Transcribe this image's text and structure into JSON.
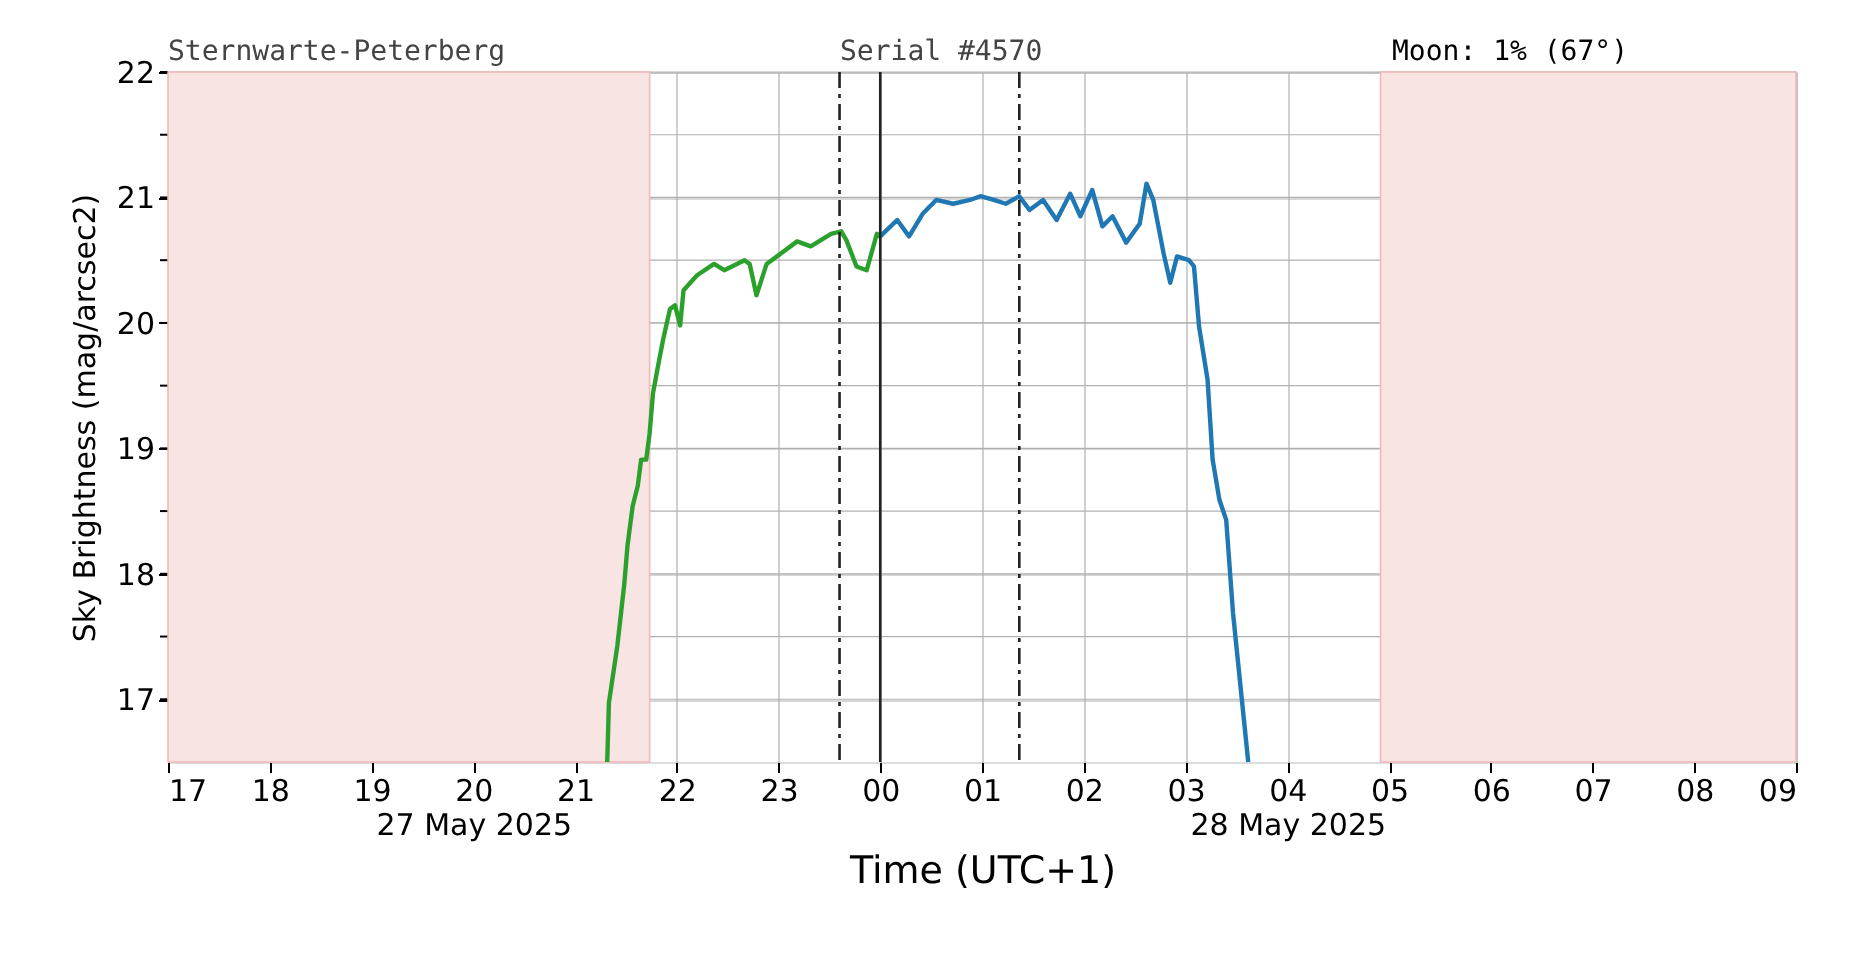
{
  "chart_data": {
    "type": "line",
    "xlabel": "Time (UTC+1)",
    "ylabel": "Sky Brightness (mag/arcsec2)",
    "annotations": [
      "Sternwarte-Peterberg",
      "Serial #4570",
      "Moon: 1% (67°)"
    ],
    "xlim": [
      "2025-05-27T17:00",
      "2025-05-28T09:00"
    ],
    "ylim": [
      16.5,
      22
    ],
    "xticks": [
      {
        "value": "2025-05-27T17:00",
        "label": "17"
      },
      {
        "value": "2025-05-27T18:00",
        "label": "18"
      },
      {
        "value": "2025-05-27T19:00",
        "label": "19"
      },
      {
        "value": "2025-05-27T20:00",
        "label": "20\n27 May 2025"
      },
      {
        "value": "2025-05-27T21:00",
        "label": "21"
      },
      {
        "value": "2025-05-27T22:00",
        "label": "22"
      },
      {
        "value": "2025-05-27T23:00",
        "label": "23"
      },
      {
        "value": "2025-05-28T00:00",
        "label": "00"
      },
      {
        "value": "2025-05-28T01:00",
        "label": "01"
      },
      {
        "value": "2025-05-28T02:00",
        "label": "02"
      },
      {
        "value": "2025-05-28T03:00",
        "label": "03"
      },
      {
        "value": "2025-05-28T04:00",
        "label": "04\n28 May 2025"
      },
      {
        "value": "2025-05-28T05:00",
        "label": "05"
      },
      {
        "value": "2025-05-28T06:00",
        "label": "06"
      },
      {
        "value": "2025-05-28T07:00",
        "label": "07"
      },
      {
        "value": "2025-05-28T08:00",
        "label": "08"
      },
      {
        "value": "2025-05-28T09:00",
        "label": "09"
      }
    ],
    "yticks": [
      17,
      {
        "value": 17.5,
        "label": null
      },
      18,
      {
        "value": 18.5,
        "label": null
      },
      19,
      {
        "value": 19.5,
        "label": null
      },
      20,
      {
        "value": 20.5,
        "label": null
      },
      21,
      {
        "value": 21.5,
        "label": null
      },
      22
    ],
    "grid": true,
    "marker": "none",
    "line_style": "solid",
    "series": [
      {
        "color": "#2ca02c",
        "x": [
          "2025-05-27T21:19",
          "2025-05-27T21:20",
          "2025-05-27T21:25",
          "2025-05-27T21:29",
          "2025-05-27T21:31",
          "2025-05-27T21:34",
          "2025-05-27T21:37",
          "2025-05-27T21:39",
          "2025-05-27T21:42",
          "2025-05-27T21:44",
          "2025-05-27T21:46",
          "2025-05-27T21:49",
          "2025-05-27T21:52",
          "2025-05-27T21:56",
          "2025-05-27T21:59",
          "2025-05-27T22:02",
          "2025-05-27T22:04",
          "2025-05-27T22:12",
          "2025-05-27T22:22",
          "2025-05-27T22:28",
          "2025-05-27T22:40",
          "2025-05-27T22:43",
          "2025-05-27T22:47",
          "2025-05-27T22:53",
          "2025-05-27T23:01",
          "2025-05-27T23:11",
          "2025-05-27T23:19",
          "2025-05-27T23:31",
          "2025-05-27T23:37",
          "2025-05-27T23:40",
          "2025-05-27T23:46",
          "2025-05-27T23:52",
          "2025-05-27T23:58",
          "2025-05-28T00:00"
        ],
        "values": [
          16.5,
          16.97,
          17.43,
          17.91,
          18.23,
          18.54,
          18.7,
          18.91,
          18.91,
          19.12,
          19.44,
          19.66,
          19.87,
          20.11,
          20.14,
          19.98,
          20.26,
          20.38,
          20.47,
          20.42,
          20.5,
          20.47,
          20.22,
          20.47,
          20.55,
          20.65,
          20.61,
          20.71,
          20.73,
          20.66,
          20.45,
          20.42,
          20.71,
          20.69
        ]
      },
      {
        "color": "#1f77b4",
        "x": [
          "2025-05-28T00:00",
          "2025-05-28T00:10",
          "2025-05-28T00:17",
          "2025-05-28T00:25",
          "2025-05-28T00:33",
          "2025-05-28T00:43",
          "2025-05-28T00:53",
          "2025-05-28T00:59",
          "2025-05-28T01:07",
          "2025-05-28T01:14",
          "2025-05-28T01:22",
          "2025-05-28T01:28",
          "2025-05-28T01:36",
          "2025-05-28T01:44",
          "2025-05-28T01:52",
          "2025-05-28T01:58",
          "2025-05-28T02:05",
          "2025-05-28T02:11",
          "2025-05-28T02:17",
          "2025-05-28T02:25",
          "2025-05-28T02:33",
          "2025-05-28T02:37",
          "2025-05-28T02:41",
          "2025-05-28T02:47",
          "2025-05-28T02:51",
          "2025-05-28T02:55",
          "2025-05-28T03:02",
          "2025-05-28T03:05",
          "2025-05-28T03:08",
          "2025-05-28T03:13",
          "2025-05-28T03:16",
          "2025-05-28T03:20",
          "2025-05-28T03:24",
          "2025-05-28T03:28",
          "2025-05-28T03:32",
          "2025-05-28T03:37"
        ],
        "values": [
          20.69,
          20.82,
          20.69,
          20.87,
          20.98,
          20.95,
          20.98,
          21.01,
          20.98,
          20.95,
          21.01,
          20.9,
          20.98,
          20.82,
          21.03,
          20.85,
          21.06,
          20.77,
          20.85,
          20.64,
          20.79,
          21.11,
          20.98,
          20.56,
          20.32,
          20.53,
          20.5,
          20.45,
          19.97,
          19.55,
          18.91,
          18.59,
          18.43,
          17.69,
          17.16,
          16.5
        ]
      }
    ],
    "ref_lines": [
      {
        "axis": "x",
        "value": "2025-05-27T23:36",
        "color": "#222222",
        "line_style": "dashdot"
      },
      {
        "axis": "x",
        "value": "2025-05-28T00:00",
        "color": "#222222",
        "line_style": "solid"
      },
      {
        "axis": "x",
        "value": "2025-05-28T01:22",
        "color": "#222222",
        "line_style": "dashdot"
      }
    ],
    "bands": [
      {
        "axis": "x",
        "from": "2025-05-27T17:00",
        "to": "2025-05-27T21:44",
        "color": "#f9e4e4"
      },
      {
        "axis": "x",
        "from": "2025-05-28T04:55",
        "to": "2025-05-28T09:00",
        "color": "#f9e4e4"
      }
    ]
  }
}
